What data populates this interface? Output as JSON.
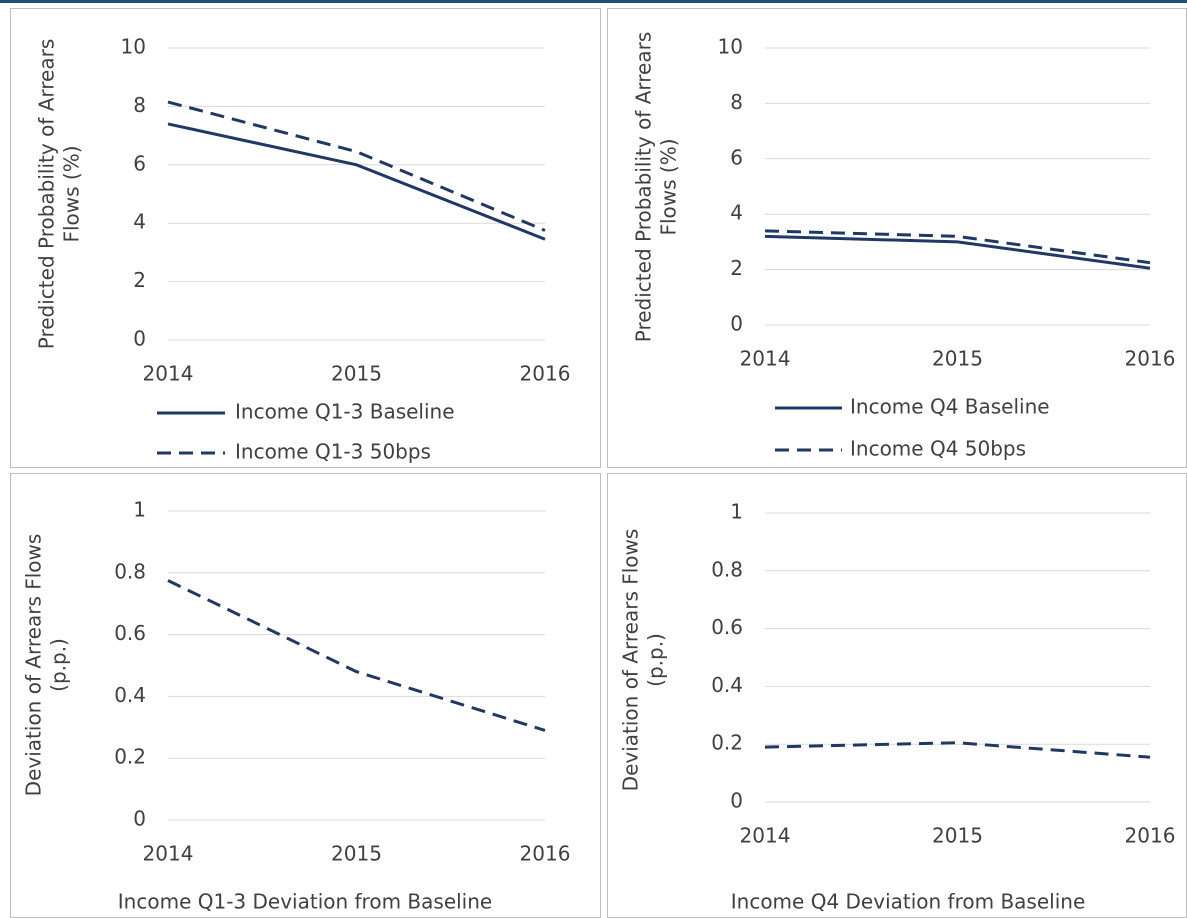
{
  "chart_data": [
    {
      "type": "line",
      "categories": [
        "2014",
        "2015",
        "2016"
      ],
      "ylabel": [
        "Predicted Probability of Arrears",
        "Flows (%)"
      ],
      "ylim": [
        0,
        10
      ],
      "yticks": [
        0,
        2,
        4,
        6,
        8,
        10
      ],
      "grid": true,
      "series": [
        {
          "name": "Income Q1-3 Baseline",
          "color": "#203864",
          "dash": false,
          "values": [
            7.4,
            6.0,
            3.45
          ]
        },
        {
          "name": "Income Q1-3 50bps",
          "color": "#203864",
          "dash": true,
          "values": [
            8.15,
            6.45,
            3.75
          ]
        }
      ]
    },
    {
      "type": "line",
      "categories": [
        "2014",
        "2015",
        "2016"
      ],
      "ylabel": [
        "Predicted Probability of Arrears",
        "Flows (%)"
      ],
      "ylim": [
        0,
        10
      ],
      "yticks": [
        0,
        2,
        4,
        6,
        8,
        10
      ],
      "grid": true,
      "series": [
        {
          "name": "Income Q4 Baseline",
          "color": "#203864",
          "dash": false,
          "values": [
            3.2,
            3.0,
            2.05
          ]
        },
        {
          "name": "Income Q4 50bps",
          "color": "#203864",
          "dash": true,
          "values": [
            3.4,
            3.2,
            2.25
          ]
        }
      ]
    },
    {
      "type": "line",
      "categories": [
        "2014",
        "2015",
        "2016"
      ],
      "ylabel": [
        "Deviation of Arrears Flows",
        "(p.p.)"
      ],
      "ylim": [
        0,
        1
      ],
      "yticks": [
        0,
        0.2,
        0.4,
        0.6,
        0.8,
        1
      ],
      "grid": true,
      "series": [
        {
          "name": "Income Q1-3 Deviation from Baseline",
          "color": "#203864",
          "dash": true,
          "values": [
            0.775,
            0.48,
            0.29
          ]
        }
      ]
    },
    {
      "type": "line",
      "categories": [
        "2014",
        "2015",
        "2016"
      ],
      "ylabel": [
        "Deviation of Arrears Flows",
        "(p.p.)"
      ],
      "ylim": [
        0,
        1
      ],
      "yticks": [
        0,
        0.2,
        0.4,
        0.6,
        0.8,
        1
      ],
      "grid": true,
      "series": [
        {
          "name": "Income Q4 Deviation from Baseline",
          "color": "#203864",
          "dash": true,
          "values": [
            0.19,
            0.205,
            0.155
          ]
        }
      ]
    }
  ]
}
